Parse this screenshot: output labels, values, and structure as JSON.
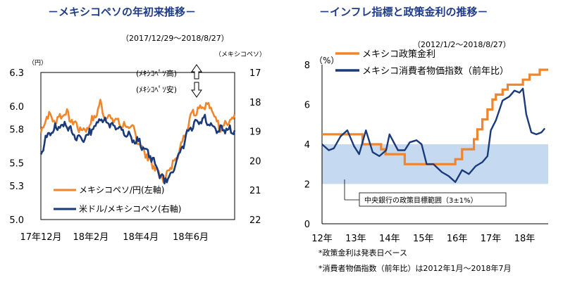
{
  "chart_data": [
    {
      "type": "line",
      "title": "－メキシコペソの年初来推移－",
      "subtitle": "（2017/12/29～2018/8/27）",
      "left_unit": "（円）",
      "right_unit": "（メキシコペソ）",
      "ylim_left": [
        5.0,
        6.3
      ],
      "yticks_left": [
        "6.3",
        "6.0",
        "5.8",
        "5.5",
        "5.3",
        "5.0"
      ],
      "ylim_right": [
        17,
        22
      ],
      "right_inverted": true,
      "yticks_right": [
        "17",
        "18",
        "19",
        "20",
        "21",
        "22"
      ],
      "xticks": [
        "17年12月",
        "18年2月",
        "18年4月",
        "18年6月"
      ],
      "xtick_pos": [
        0,
        42,
        84,
        126
      ],
      "n_points": 164,
      "arrow_up_label": "(ﾒｷｼｺﾍﾟｿ高)",
      "arrow_down_label": "(ﾒｷｼｺﾍﾟｿ安)",
      "series": [
        {
          "name": "メキシコペソ/円(左軸)",
          "color": "#f0852b",
          "x": [
            0,
            5,
            12,
            20,
            28,
            36,
            44,
            50,
            54,
            62,
            70,
            78,
            84,
            90,
            98,
            104,
            110,
            116,
            122,
            126,
            132,
            138,
            144,
            150,
            156,
            163
          ],
          "values": [
            5.75,
            5.93,
            5.87,
            5.95,
            5.85,
            5.78,
            5.88,
            6.02,
            5.92,
            5.88,
            5.83,
            5.79,
            5.65,
            5.55,
            5.42,
            5.35,
            5.48,
            5.6,
            5.78,
            5.93,
            5.98,
            6.02,
            5.97,
            5.82,
            5.85,
            5.9
          ]
        },
        {
          "name": "米ドル/メキシコペソ(右軸)",
          "color": "#1a3a7a",
          "x": [
            0,
            5,
            12,
            20,
            28,
            36,
            44,
            50,
            54,
            62,
            70,
            78,
            84,
            90,
            98,
            104,
            110,
            116,
            122,
            126,
            132,
            138,
            144,
            150,
            156,
            163
          ],
          "values": [
            19.7,
            19.2,
            18.9,
            18.8,
            19.1,
            19.3,
            18.9,
            18.6,
            18.7,
            18.8,
            19.0,
            19.3,
            19.4,
            19.7,
            20.3,
            20.7,
            20.4,
            19.9,
            19.2,
            18.9,
            18.7,
            18.6,
            18.9,
            19.0,
            18.9,
            19.0
          ]
        }
      ]
    },
    {
      "type": "line",
      "title": "－インフレ指標と政策金利の推移－",
      "subtitle": "（2012/1/2～2018/8/27）",
      "unit": "（%）",
      "ylim": [
        0,
        8
      ],
      "yticks": [
        "0",
        "2",
        "4",
        "6",
        "8"
      ],
      "xlim": [
        2012.0,
        2018.7
      ],
      "xticks": [
        "12年",
        "13年",
        "14年",
        "15年",
        "16年",
        "17年",
        "18年"
      ],
      "band": {
        "range": [
          2,
          4
        ],
        "label": "中央銀行の政策目標範囲（3±1%）"
      },
      "series": [
        {
          "name": "メキシコ政策金利",
          "color": "#f0852b",
          "step": true,
          "x": [
            2012.0,
            2013.2,
            2013.75,
            2013.88,
            2014.45,
            2015.95,
            2016.15,
            2016.5,
            2016.6,
            2016.75,
            2016.9,
            2017.05,
            2017.15,
            2017.35,
            2017.5,
            2017.95,
            2018.15,
            2018.45,
            2018.7
          ],
          "values": [
            4.5,
            4.0,
            3.75,
            3.5,
            3.0,
            3.25,
            3.75,
            4.25,
            4.75,
            5.25,
            5.75,
            6.25,
            6.5,
            6.75,
            7.0,
            7.25,
            7.5,
            7.75,
            7.75
          ]
        },
        {
          "name": "メキシコ消費者物価指数（前年比）",
          "color": "#1a3a7a",
          "x": [
            2012.0,
            2012.2,
            2012.35,
            2012.55,
            2012.75,
            2012.95,
            2013.1,
            2013.3,
            2013.5,
            2013.7,
            2013.9,
            2014.0,
            2014.25,
            2014.45,
            2014.6,
            2014.8,
            2014.95,
            2015.1,
            2015.3,
            2015.55,
            2015.75,
            2015.95,
            2016.15,
            2016.35,
            2016.55,
            2016.75,
            2016.9,
            2017.0,
            2017.15,
            2017.35,
            2017.55,
            2017.7,
            2017.85,
            2017.95,
            2018.05,
            2018.2,
            2018.35,
            2018.5,
            2018.6
          ],
          "values": [
            4.0,
            3.7,
            3.8,
            4.4,
            4.7,
            3.9,
            3.5,
            4.7,
            3.6,
            3.4,
            3.7,
            4.5,
            3.7,
            3.7,
            4.1,
            4.2,
            4.0,
            3.0,
            3.0,
            2.6,
            2.4,
            2.1,
            2.7,
            2.5,
            2.9,
            3.1,
            3.4,
            4.7,
            5.2,
            6.2,
            6.4,
            6.7,
            6.6,
            6.8,
            5.5,
            4.6,
            4.5,
            4.6,
            4.8
          ]
        }
      ],
      "notes": [
        "*政策金利は発表日ベース",
        "*消費者物価指数（前年比）は2012年1月～2018年7月"
      ]
    }
  ]
}
